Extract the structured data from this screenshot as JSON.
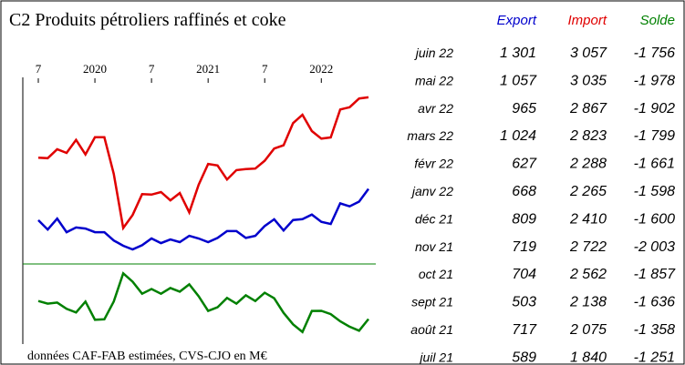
{
  "chart_data": {
    "type": "line",
    "title": "C2  Produits pétroliers raffinés et coke",
    "note": "données CAF-FAB estimées, CVS-CJO en M€",
    "xlim": [
      0,
      35
    ],
    "xticks": [
      {
        "value": 0,
        "label": "7"
      },
      {
        "value": 6,
        "label": "2020"
      },
      {
        "value": 12,
        "label": "7"
      },
      {
        "value": 18,
        "label": "2021"
      },
      {
        "value": 24,
        "label": "7"
      },
      {
        "value": 30,
        "label": "2022"
      }
    ],
    "ylim": [
      0,
      3300
    ],
    "y2lim": [
      -2200,
      -700
    ],
    "series": [
      {
        "name": "Export",
        "color": "#0000cc",
        "values": [
          700,
          520,
          730,
          470,
          560,
          540,
          470,
          470,
          310,
          210,
          140,
          220,
          350,
          260,
          330,
          280,
          400,
          350,
          280,
          360,
          490,
          490,
          360,
          400,
          589,
          717,
          503,
          704,
          719,
          809,
          668,
          627,
          1024,
          965,
          1057,
          1301
        ]
      },
      {
        "name": "Import",
        "color": "#e00000",
        "values": [
          1900,
          1890,
          2060,
          1990,
          2240,
          1960,
          2290,
          2290,
          1590,
          550,
          800,
          1200,
          1190,
          1240,
          1080,
          1220,
          850,
          1380,
          1780,
          1750,
          1480,
          1660,
          1680,
          1690,
          1840,
          2075,
          2138,
          2562,
          2722,
          2410,
          2265,
          2288,
          2823,
          2867,
          3035,
          3057
        ]
      },
      {
        "name": "Solde",
        "color": "#008000",
        "axis": "y2",
        "values": [
          -1410,
          -1460,
          -1440,
          -1560,
          -1630,
          -1420,
          -1770,
          -1760,
          -1420,
          -880,
          -1040,
          -1270,
          -1180,
          -1270,
          -1160,
          -1230,
          -1090,
          -1320,
          -1600,
          -1530,
          -1350,
          -1460,
          -1300,
          -1410,
          -1251,
          -1358,
          -1636,
          -1857,
          -2003,
          -1600,
          -1598,
          -1661,
          -1799,
          -1902,
          -1978,
          -1756
        ]
      }
    ]
  },
  "table": {
    "rows": [
      [
        "juin 22",
        "1 301",
        "3 057",
        "-1 756"
      ],
      [
        "mai 22",
        "1 057",
        "3 035",
        "-1 978"
      ],
      [
        "avr 22",
        "965",
        "2 867",
        "-1 902"
      ],
      [
        "mars 22",
        "1 024",
        "2 823",
        "-1 799"
      ],
      [
        "févr 22",
        "627",
        "2 288",
        "-1 661"
      ],
      [
        "janv 22",
        "668",
        "2 265",
        "-1 598"
      ],
      [
        "déc 21",
        "809",
        "2 410",
        "-1 600"
      ],
      [
        "nov 21",
        "719",
        "2 722",
        "-2 003"
      ],
      [
        "oct 21",
        "704",
        "2 562",
        "-1 857"
      ],
      [
        "sept 21",
        "503",
        "2 138",
        "-1 636"
      ],
      [
        "août 21",
        "717",
        "2 075",
        "-1 358"
      ],
      [
        "juil 21",
        "589",
        "1 840",
        "-1 251"
      ]
    ]
  }
}
